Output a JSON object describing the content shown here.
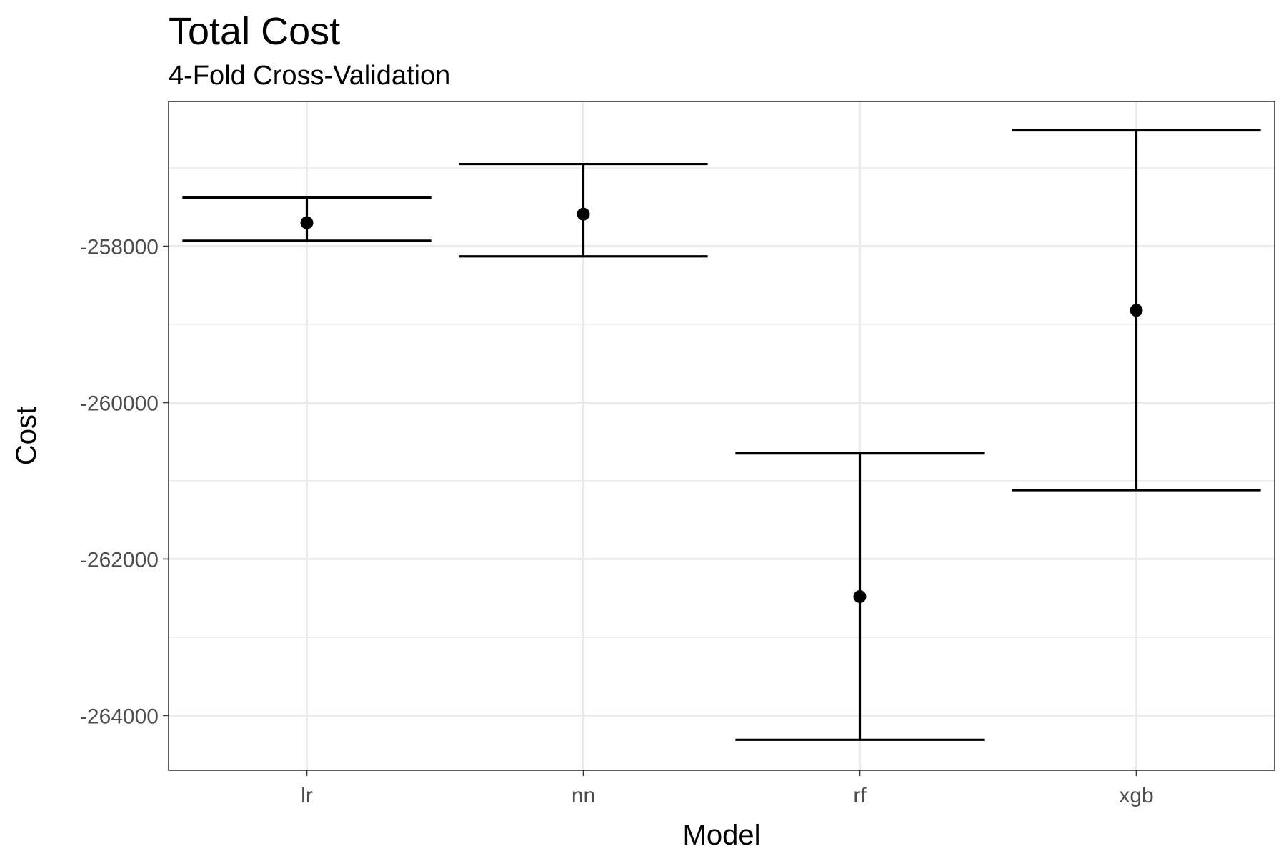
{
  "chart_data": {
    "type": "errorbar",
    "title": "Total Cost",
    "subtitle": "4-Fold Cross-Validation",
    "xlabel": "Model",
    "ylabel": "Cost",
    "categories": [
      "lr",
      "nn",
      "rf",
      "xgb"
    ],
    "points": [
      {
        "x": "lr",
        "mean": -257700,
        "ymin": -257930,
        "ymax": -257380
      },
      {
        "x": "nn",
        "mean": -257590,
        "ymin": -258130,
        "ymax": -256950
      },
      {
        "x": "rf",
        "mean": -262480,
        "ymin": -264310,
        "ymax": -260650
      },
      {
        "x": "xgb",
        "mean": -258820,
        "ymin": -261120,
        "ymax": -256520
      }
    ],
    "yticks": [
      -264000,
      -262000,
      -260000,
      -258000
    ],
    "ytick_labels": [
      "-264000",
      "-262000",
      "-260000",
      "-258000"
    ],
    "ylim": [
      -264700,
      -256150
    ],
    "grid": true,
    "colors": {
      "marks": "#000000",
      "grid": "#ebebeb",
      "border": "#333333"
    }
  }
}
